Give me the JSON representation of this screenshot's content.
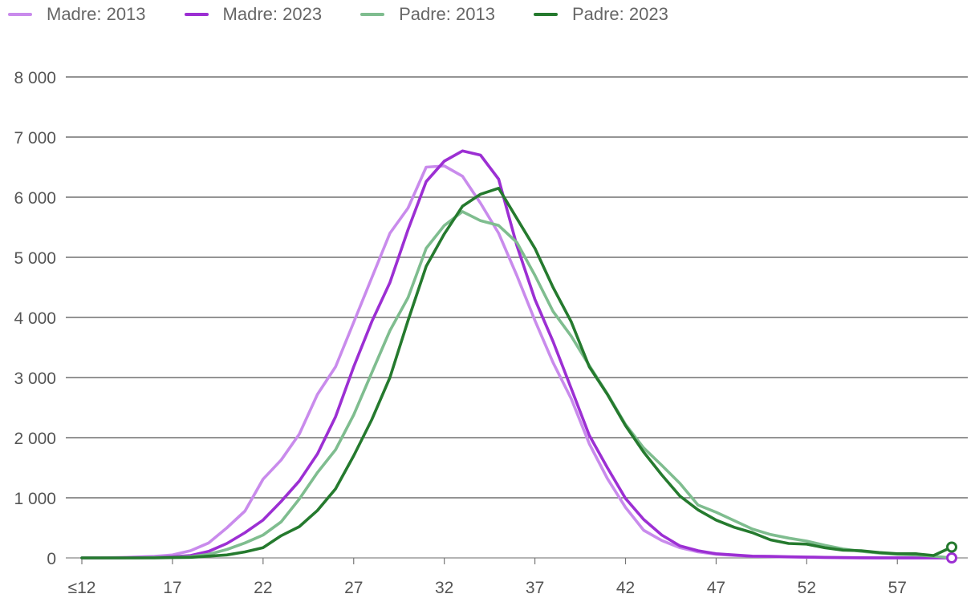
{
  "chart_data": {
    "type": "line",
    "title": "",
    "xlabel": "",
    "ylabel": "",
    "x": [
      12,
      13,
      14,
      15,
      16,
      17,
      18,
      19,
      20,
      21,
      22,
      23,
      24,
      25,
      26,
      27,
      28,
      29,
      30,
      31,
      32,
      33,
      34,
      35,
      36,
      37,
      38,
      39,
      40,
      41,
      42,
      43,
      44,
      45,
      46,
      47,
      48,
      49,
      50,
      51,
      52,
      53,
      54,
      55,
      56,
      57,
      58,
      59,
      60
    ],
    "x_ticks": [
      12,
      17,
      22,
      27,
      32,
      37,
      42,
      47,
      52,
      57
    ],
    "x_tick_labels": [
      "≤12",
      "17",
      "22",
      "27",
      "32",
      "37",
      "42",
      "47",
      "52",
      "57"
    ],
    "xlim": [
      12,
      60
    ],
    "ylim": [
      0,
      8000
    ],
    "y_ticks": [
      0,
      1000,
      2000,
      3000,
      4000,
      5000,
      6000,
      7000,
      8000
    ],
    "y_tick_labels": [
      "0",
      "1 000",
      "2 000",
      "3 000",
      "4 000",
      "5 000",
      "6 000",
      "7 000",
      "8 000"
    ],
    "grid": true,
    "legend_position": "top-left",
    "series": [
      {
        "name": "Madre: 2013",
        "color": "#c98bec",
        "values": [
          0,
          0,
          5,
          15,
          25,
          50,
          120,
          250,
          500,
          780,
          1310,
          1630,
          2060,
          2720,
          3180,
          3920,
          4660,
          5400,
          5820,
          6500,
          6520,
          6350,
          5900,
          5400,
          4700,
          3950,
          3250,
          2650,
          1900,
          1320,
          840,
          460,
          290,
          170,
          100,
          60,
          40,
          25,
          20,
          15,
          10,
          5,
          3,
          2,
          1,
          1,
          0,
          0,
          0
        ]
      },
      {
        "name": "Madre: 2023",
        "color": "#9c2fd3",
        "values": [
          0,
          0,
          0,
          5,
          10,
          20,
          40,
          110,
          240,
          420,
          630,
          940,
          1280,
          1730,
          2350,
          3180,
          3930,
          4580,
          5460,
          6260,
          6600,
          6770,
          6700,
          6300,
          5200,
          4300,
          3600,
          2820,
          2040,
          1500,
          990,
          640,
          380,
          200,
          120,
          70,
          50,
          30,
          25,
          20,
          15,
          10,
          5,
          3,
          2,
          1,
          0,
          0,
          0
        ]
      },
      {
        "name": "Padre: 2013",
        "color": "#7fbd8f",
        "values": [
          0,
          0,
          0,
          0,
          5,
          10,
          20,
          60,
          140,
          250,
          380,
          600,
          980,
          1420,
          1800,
          2380,
          3080,
          3780,
          4330,
          5150,
          5530,
          5760,
          5610,
          5530,
          5250,
          4700,
          4100,
          3690,
          3200,
          2730,
          2220,
          1830,
          1540,
          1240,
          880,
          760,
          620,
          480,
          390,
          330,
          280,
          210,
          150,
          110,
          80,
          60,
          50,
          30,
          0
        ]
      },
      {
        "name": "Padre: 2023",
        "color": "#257a2e",
        "values": [
          0,
          0,
          0,
          0,
          0,
          5,
          10,
          30,
          50,
          100,
          170,
          370,
          520,
          790,
          1150,
          1700,
          2300,
          3000,
          3950,
          4850,
          5390,
          5850,
          6050,
          6150,
          5650,
          5150,
          4500,
          3930,
          3180,
          2720,
          2200,
          1760,
          1380,
          1030,
          800,
          630,
          510,
          420,
          300,
          240,
          230,
          170,
          130,
          120,
          90,
          70,
          70,
          40,
          180
        ]
      }
    ]
  }
}
